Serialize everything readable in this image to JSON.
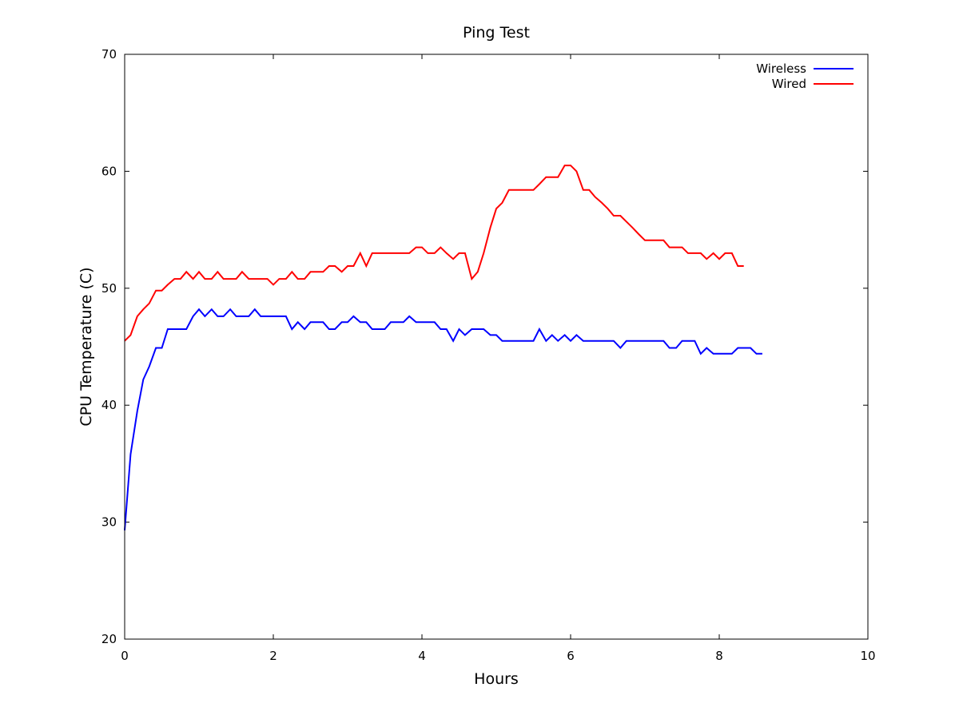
{
  "chart_data": {
    "type": "line",
    "title": "Ping Test",
    "xlabel": "Hours",
    "ylabel": "CPU Temperature (C)",
    "xlim": [
      0,
      10
    ],
    "ylim": [
      20,
      70
    ],
    "xticks": [
      0,
      2,
      4,
      6,
      8,
      10
    ],
    "yticks": [
      20,
      30,
      40,
      50,
      60,
      70
    ],
    "grid": false,
    "legend_position": "top-right",
    "series": [
      {
        "name": "Wireless",
        "color": "#0000ff",
        "points": [
          [
            0.0,
            29.3
          ],
          [
            0.08,
            35.8
          ],
          [
            0.17,
            39.5
          ],
          [
            0.25,
            42.2
          ],
          [
            0.33,
            43.3
          ],
          [
            0.42,
            44.9
          ],
          [
            0.5,
            44.9
          ],
          [
            0.58,
            46.5
          ],
          [
            0.67,
            46.5
          ],
          [
            0.75,
            46.5
          ],
          [
            0.83,
            46.5
          ],
          [
            0.92,
            47.6
          ],
          [
            1.0,
            48.2
          ],
          [
            1.08,
            47.6
          ],
          [
            1.17,
            48.2
          ],
          [
            1.25,
            47.6
          ],
          [
            1.33,
            47.6
          ],
          [
            1.42,
            48.2
          ],
          [
            1.5,
            47.6
          ],
          [
            1.58,
            47.6
          ],
          [
            1.67,
            47.6
          ],
          [
            1.75,
            48.2
          ],
          [
            1.83,
            47.6
          ],
          [
            1.92,
            47.6
          ],
          [
            2.0,
            47.6
          ],
          [
            2.08,
            47.6
          ],
          [
            2.17,
            47.6
          ],
          [
            2.25,
            46.5
          ],
          [
            2.33,
            47.1
          ],
          [
            2.42,
            46.5
          ],
          [
            2.5,
            47.1
          ],
          [
            2.58,
            47.1
          ],
          [
            2.67,
            47.1
          ],
          [
            2.75,
            46.5
          ],
          [
            2.83,
            46.5
          ],
          [
            2.92,
            47.1
          ],
          [
            3.0,
            47.1
          ],
          [
            3.08,
            47.6
          ],
          [
            3.17,
            47.1
          ],
          [
            3.25,
            47.1
          ],
          [
            3.33,
            46.5
          ],
          [
            3.42,
            46.5
          ],
          [
            3.5,
            46.5
          ],
          [
            3.58,
            47.1
          ],
          [
            3.67,
            47.1
          ],
          [
            3.75,
            47.1
          ],
          [
            3.83,
            47.6
          ],
          [
            3.92,
            47.1
          ],
          [
            4.0,
            47.1
          ],
          [
            4.08,
            47.1
          ],
          [
            4.17,
            47.1
          ],
          [
            4.25,
            46.5
          ],
          [
            4.33,
            46.5
          ],
          [
            4.42,
            45.5
          ],
          [
            4.5,
            46.5
          ],
          [
            4.58,
            46.0
          ],
          [
            4.67,
            46.5
          ],
          [
            4.75,
            46.5
          ],
          [
            4.83,
            46.5
          ],
          [
            4.92,
            46.0
          ],
          [
            5.0,
            46.0
          ],
          [
            5.08,
            45.5
          ],
          [
            5.17,
            45.5
          ],
          [
            5.25,
            45.5
          ],
          [
            5.33,
            45.5
          ],
          [
            5.42,
            45.5
          ],
          [
            5.5,
            45.5
          ],
          [
            5.58,
            46.5
          ],
          [
            5.67,
            45.5
          ],
          [
            5.75,
            46.0
          ],
          [
            5.83,
            45.5
          ],
          [
            5.92,
            46.0
          ],
          [
            6.0,
            45.5
          ],
          [
            6.08,
            46.0
          ],
          [
            6.17,
            45.5
          ],
          [
            6.25,
            45.5
          ],
          [
            6.33,
            45.5
          ],
          [
            6.42,
            45.5
          ],
          [
            6.5,
            45.5
          ],
          [
            6.58,
            45.5
          ],
          [
            6.67,
            44.9
          ],
          [
            6.75,
            45.5
          ],
          [
            6.83,
            45.5
          ],
          [
            6.92,
            45.5
          ],
          [
            7.0,
            45.5
          ],
          [
            7.08,
            45.5
          ],
          [
            7.17,
            45.5
          ],
          [
            7.25,
            45.5
          ],
          [
            7.33,
            44.9
          ],
          [
            7.42,
            44.9
          ],
          [
            7.5,
            45.5
          ],
          [
            7.58,
            45.5
          ],
          [
            7.67,
            45.5
          ],
          [
            7.75,
            44.4
          ],
          [
            7.83,
            44.9
          ],
          [
            7.92,
            44.4
          ],
          [
            8.0,
            44.4
          ],
          [
            8.08,
            44.4
          ],
          [
            8.17,
            44.4
          ],
          [
            8.25,
            44.9
          ],
          [
            8.33,
            44.9
          ],
          [
            8.42,
            44.9
          ],
          [
            8.5,
            44.4
          ],
          [
            8.58,
            44.4
          ]
        ]
      },
      {
        "name": "Wired",
        "color": "#ff0000",
        "points": [
          [
            0.0,
            45.5
          ],
          [
            0.08,
            46.0
          ],
          [
            0.17,
            47.6
          ],
          [
            0.25,
            48.2
          ],
          [
            0.33,
            48.7
          ],
          [
            0.42,
            49.8
          ],
          [
            0.5,
            49.8
          ],
          [
            0.58,
            50.3
          ],
          [
            0.67,
            50.8
          ],
          [
            0.75,
            50.8
          ],
          [
            0.83,
            51.4
          ],
          [
            0.92,
            50.8
          ],
          [
            1.0,
            51.4
          ],
          [
            1.08,
            50.8
          ],
          [
            1.17,
            50.8
          ],
          [
            1.25,
            51.4
          ],
          [
            1.33,
            50.8
          ],
          [
            1.42,
            50.8
          ],
          [
            1.5,
            50.8
          ],
          [
            1.58,
            51.4
          ],
          [
            1.67,
            50.8
          ],
          [
            1.75,
            50.8
          ],
          [
            1.83,
            50.8
          ],
          [
            1.92,
            50.8
          ],
          [
            2.0,
            50.3
          ],
          [
            2.08,
            50.8
          ],
          [
            2.17,
            50.8
          ],
          [
            2.25,
            51.4
          ],
          [
            2.33,
            50.8
          ],
          [
            2.42,
            50.8
          ],
          [
            2.5,
            51.4
          ],
          [
            2.58,
            51.4
          ],
          [
            2.67,
            51.4
          ],
          [
            2.75,
            51.9
          ],
          [
            2.83,
            51.9
          ],
          [
            2.92,
            51.4
          ],
          [
            3.0,
            51.9
          ],
          [
            3.08,
            51.9
          ],
          [
            3.17,
            53.0
          ],
          [
            3.25,
            51.9
          ],
          [
            3.33,
            53.0
          ],
          [
            3.42,
            53.0
          ],
          [
            3.5,
            53.0
          ],
          [
            3.58,
            53.0
          ],
          [
            3.67,
            53.0
          ],
          [
            3.75,
            53.0
          ],
          [
            3.83,
            53.0
          ],
          [
            3.92,
            53.5
          ],
          [
            4.0,
            53.5
          ],
          [
            4.08,
            53.0
          ],
          [
            4.17,
            53.0
          ],
          [
            4.25,
            53.5
          ],
          [
            4.33,
            53.0
          ],
          [
            4.42,
            52.5
          ],
          [
            4.5,
            53.0
          ],
          [
            4.58,
            53.0
          ],
          [
            4.67,
            50.8
          ],
          [
            4.75,
            51.4
          ],
          [
            4.83,
            53.0
          ],
          [
            4.92,
            55.2
          ],
          [
            5.0,
            56.8
          ],
          [
            5.08,
            57.3
          ],
          [
            5.17,
            58.4
          ],
          [
            5.25,
            58.4
          ],
          [
            5.33,
            58.4
          ],
          [
            5.42,
            58.4
          ],
          [
            5.5,
            58.4
          ],
          [
            5.58,
            58.9
          ],
          [
            5.67,
            59.5
          ],
          [
            5.75,
            59.5
          ],
          [
            5.83,
            59.5
          ],
          [
            5.92,
            60.5
          ],
          [
            6.0,
            60.5
          ],
          [
            6.08,
            60.0
          ],
          [
            6.17,
            58.4
          ],
          [
            6.25,
            58.4
          ],
          [
            6.33,
            57.8
          ],
          [
            6.42,
            57.3
          ],
          [
            6.5,
            56.8
          ],
          [
            6.58,
            56.2
          ],
          [
            6.67,
            56.2
          ],
          [
            6.75,
            55.7
          ],
          [
            6.83,
            55.2
          ],
          [
            6.92,
            54.6
          ],
          [
            7.0,
            54.1
          ],
          [
            7.08,
            54.1
          ],
          [
            7.17,
            54.1
          ],
          [
            7.25,
            54.1
          ],
          [
            7.33,
            53.5
          ],
          [
            7.42,
            53.5
          ],
          [
            7.5,
            53.5
          ],
          [
            7.58,
            53.0
          ],
          [
            7.67,
            53.0
          ],
          [
            7.75,
            53.0
          ],
          [
            7.83,
            52.5
          ],
          [
            7.92,
            53.0
          ],
          [
            8.0,
            52.5
          ],
          [
            8.08,
            53.0
          ],
          [
            8.17,
            53.0
          ],
          [
            8.25,
            51.9
          ],
          [
            8.33,
            51.9
          ]
        ]
      }
    ]
  }
}
